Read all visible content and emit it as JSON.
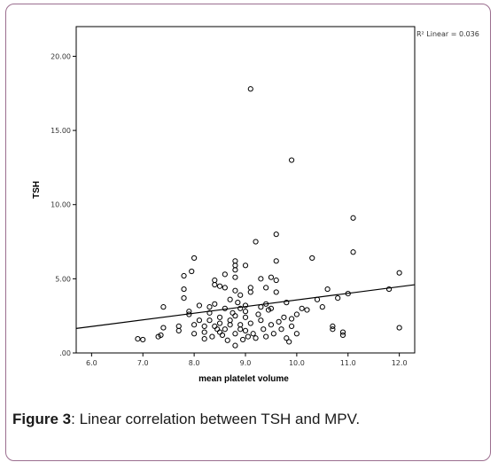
{
  "caption": {
    "label": "Figure 3",
    "text": ": Linear correlation between TSH and MPV."
  },
  "colors": {
    "frame_border": "#9b6e8f",
    "plot_border": "#000000",
    "marker": "#000000",
    "fit_line": "#000000"
  },
  "chart_data": {
    "type": "scatter",
    "xlabel": "mean platelet volume",
    "ylabel": "TSH",
    "xlim": [
      5.7,
      12.3
    ],
    "ylim": [
      0,
      22
    ],
    "x_ticks": [
      6.0,
      7.0,
      8.0,
      9.0,
      10.0,
      11.0,
      12.0
    ],
    "x_tick_labels": [
      "6.0",
      "7.0",
      "8.0",
      "9.0",
      "10.0",
      "11.0",
      "12.0"
    ],
    "y_ticks": [
      0,
      5,
      10,
      15,
      20
    ],
    "y_tick_labels": [
      ".00",
      "5.00",
      "10.00",
      "15.00",
      "20.00"
    ],
    "grid": false,
    "fit": {
      "label": "R² Linear = 0.036",
      "x": [
        5.7,
        12.3
      ],
      "y": [
        1.65,
        4.6
      ]
    },
    "points": [
      [
        6.9,
        0.95
      ],
      [
        7.0,
        0.9
      ],
      [
        7.3,
        1.1
      ],
      [
        7.35,
        1.2
      ],
      [
        7.4,
        1.7
      ],
      [
        7.4,
        3.1
      ],
      [
        7.7,
        1.8
      ],
      [
        7.7,
        1.5
      ],
      [
        7.8,
        5.2
      ],
      [
        7.8,
        3.7
      ],
      [
        7.8,
        4.3
      ],
      [
        7.9,
        2.6
      ],
      [
        7.9,
        2.8
      ],
      [
        7.95,
        5.5
      ],
      [
        8.0,
        6.4
      ],
      [
        8.0,
        1.9
      ],
      [
        8.0,
        1.3
      ],
      [
        8.1,
        2.2
      ],
      [
        8.1,
        3.2
      ],
      [
        8.2,
        1.8
      ],
      [
        8.2,
        1.4
      ],
      [
        8.2,
        0.95
      ],
      [
        8.3,
        2.7
      ],
      [
        8.3,
        2.2
      ],
      [
        8.3,
        3.1
      ],
      [
        8.35,
        1.1
      ],
      [
        8.4,
        4.9
      ],
      [
        8.4,
        4.6
      ],
      [
        8.4,
        1.8
      ],
      [
        8.4,
        3.3
      ],
      [
        8.45,
        1.6
      ],
      [
        8.5,
        4.5
      ],
      [
        8.5,
        2.4
      ],
      [
        8.5,
        2.0
      ],
      [
        8.5,
        1.4
      ],
      [
        8.55,
        1.2
      ],
      [
        8.6,
        4.4
      ],
      [
        8.6,
        5.3
      ],
      [
        8.6,
        3.0
      ],
      [
        8.6,
        1.6
      ],
      [
        8.65,
        0.85
      ],
      [
        8.7,
        2.2
      ],
      [
        8.7,
        3.6
      ],
      [
        8.7,
        1.9
      ],
      [
        8.75,
        2.7
      ],
      [
        8.8,
        6.2
      ],
      [
        8.8,
        5.9
      ],
      [
        8.8,
        5.6
      ],
      [
        8.8,
        5.1
      ],
      [
        8.8,
        4.2
      ],
      [
        8.8,
        2.5
      ],
      [
        8.8,
        1.3
      ],
      [
        8.8,
        0.5
      ],
      [
        8.85,
        3.4
      ],
      [
        8.9,
        3.9
      ],
      [
        8.9,
        3.0
      ],
      [
        8.9,
        1.9
      ],
      [
        8.9,
        1.6
      ],
      [
        8.95,
        0.9
      ],
      [
        9.0,
        5.9
      ],
      [
        9.0,
        3.2
      ],
      [
        9.0,
        2.8
      ],
      [
        9.0,
        2.4
      ],
      [
        9.0,
        1.5
      ],
      [
        9.05,
        1.1
      ],
      [
        9.1,
        17.8
      ],
      [
        9.1,
        4.4
      ],
      [
        9.1,
        4.1
      ],
      [
        9.1,
        2.0
      ],
      [
        9.15,
        1.3
      ],
      [
        9.2,
        7.5
      ],
      [
        9.2,
        1.0
      ],
      [
        9.25,
        2.6
      ],
      [
        9.3,
        5.0
      ],
      [
        9.3,
        3.1
      ],
      [
        9.3,
        2.2
      ],
      [
        9.35,
        1.6
      ],
      [
        9.4,
        4.4
      ],
      [
        9.4,
        3.3
      ],
      [
        9.4,
        1.1
      ],
      [
        9.45,
        2.9
      ],
      [
        9.5,
        5.1
      ],
      [
        9.5,
        3.0
      ],
      [
        9.5,
        1.9
      ],
      [
        9.55,
        1.3
      ],
      [
        9.6,
        8.0
      ],
      [
        9.6,
        6.2
      ],
      [
        9.6,
        4.9
      ],
      [
        9.6,
        4.1
      ],
      [
        9.65,
        2.1
      ],
      [
        9.7,
        1.6
      ],
      [
        9.75,
        2.4
      ],
      [
        9.8,
        3.4
      ],
      [
        9.8,
        1.0
      ],
      [
        9.85,
        0.75
      ],
      [
        9.9,
        13.0
      ],
      [
        9.9,
        2.3
      ],
      [
        9.9,
        1.8
      ],
      [
        10.0,
        2.6
      ],
      [
        10.0,
        1.3
      ],
      [
        10.1,
        3.0
      ],
      [
        10.2,
        2.9
      ],
      [
        10.3,
        6.4
      ],
      [
        10.4,
        3.6
      ],
      [
        10.5,
        3.1
      ],
      [
        10.6,
        4.3
      ],
      [
        10.7,
        1.8
      ],
      [
        10.7,
        1.6
      ],
      [
        10.8,
        3.7
      ],
      [
        10.9,
        1.4
      ],
      [
        10.9,
        1.2
      ],
      [
        11.0,
        4.0
      ],
      [
        11.1,
        9.1
      ],
      [
        11.1,
        6.8
      ],
      [
        11.8,
        4.3
      ],
      [
        12.0,
        5.4
      ],
      [
        12.0,
        1.7
      ]
    ]
  }
}
